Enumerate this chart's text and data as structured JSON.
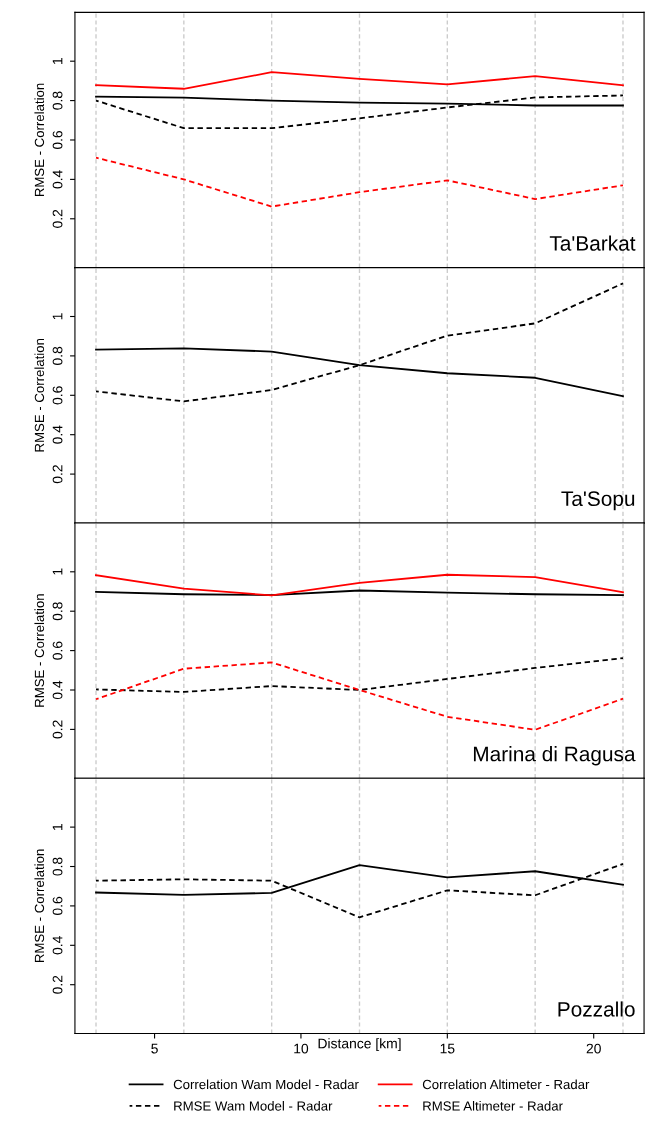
{
  "chart_data": [
    {
      "type": "line",
      "ylabel": "RMSE - Correlation",
      "annotations": [
        "Ta'Barkat"
      ],
      "x": [
        3,
        6,
        9,
        12,
        15,
        18,
        21
      ],
      "xlim": [
        2.28,
        21.72
      ],
      "ylim": [
        -0.048,
        1.248
      ],
      "yticks": [
        0.2,
        0.4,
        0.6,
        0.8,
        1
      ],
      "tick_labels": "y",
      "legend": "bottom",
      "ref_lines": [
        {
          "axis": "x",
          "value": 3,
          "color": "#cccccc",
          "line_style": "dashed"
        },
        {
          "axis": "x",
          "value": 6,
          "color": "#cccccc",
          "line_style": "dashed"
        },
        {
          "axis": "x",
          "value": 9,
          "color": "#cccccc",
          "line_style": "dashed"
        },
        {
          "axis": "x",
          "value": 12,
          "color": "#cccccc",
          "line_style": "dashed"
        },
        {
          "axis": "x",
          "value": 15,
          "color": "#cccccc",
          "line_style": "dashed"
        },
        {
          "axis": "x",
          "value": 18,
          "color": "#cccccc",
          "line_style": "dashed"
        },
        {
          "axis": "x",
          "value": 21,
          "color": "#cccccc",
          "line_style": "dashed"
        }
      ],
      "series": [
        {
          "name": "Correlation Wam Model - Radar",
          "color": "#000000",
          "line_style": "solid",
          "values": [
            0.82,
            0.815,
            0.8,
            0.79,
            0.785,
            0.775,
            0.775
          ]
        },
        {
          "name": "Correlation Altimeter - Radar",
          "color": "#ff0000",
          "line_style": "solid",
          "values": [
            0.878,
            0.86,
            0.944,
            0.91,
            0.882,
            0.924,
            0.878
          ]
        },
        {
          "name": "RMSE Wam Model - Radar",
          "color": "#000000",
          "line_style": "dashed",
          "values": [
            0.8,
            0.66,
            0.66,
            0.71,
            0.765,
            0.816,
            0.826
          ]
        },
        {
          "name": "RMSE Altimeter - Radar",
          "color": "#ff0000",
          "line_style": "dashed",
          "values": [
            0.51,
            0.4,
            0.262,
            0.335,
            0.395,
            0.3,
            0.37
          ]
        }
      ]
    },
    {
      "type": "line",
      "ylabel": "RMSE - Correlation",
      "annotations": [
        "Ta'Sopu"
      ],
      "x": [
        3,
        6,
        9,
        12,
        15,
        18,
        21
      ],
      "xlim": [
        2.28,
        21.72
      ],
      "ylim": [
        -0.048,
        1.248
      ],
      "yticks": [
        0.2,
        0.4,
        0.6,
        0.8,
        1
      ],
      "tick_labels": "y",
      "legend": false,
      "ref_lines": [
        {
          "axis": "x",
          "value": 3,
          "color": "#cccccc",
          "line_style": "dashed"
        },
        {
          "axis": "x",
          "value": 6,
          "color": "#cccccc",
          "line_style": "dashed"
        },
        {
          "axis": "x",
          "value": 9,
          "color": "#cccccc",
          "line_style": "dashed"
        },
        {
          "axis": "x",
          "value": 12,
          "color": "#cccccc",
          "line_style": "dashed"
        },
        {
          "axis": "x",
          "value": 15,
          "color": "#cccccc",
          "line_style": "dashed"
        },
        {
          "axis": "x",
          "value": 18,
          "color": "#cccccc",
          "line_style": "dashed"
        },
        {
          "axis": "x",
          "value": 21,
          "color": "#cccccc",
          "line_style": "dashed"
        }
      ],
      "series": [
        {
          "color": "#000000",
          "line_style": "solid",
          "values": [
            0.832,
            0.838,
            0.822,
            0.753,
            0.712,
            0.689,
            0.596
          ]
        },
        {
          "color": "#000000",
          "line_style": "dashed",
          "values": [
            0.62,
            0.569,
            0.627,
            0.753,
            0.903,
            0.965,
            1.168
          ]
        }
      ]
    },
    {
      "type": "line",
      "ylabel": "RMSE - Correlation",
      "annotations": [
        "Marina di Ragusa"
      ],
      "x": [
        3,
        6,
        9,
        12,
        15,
        18,
        21
      ],
      "xlim": [
        2.28,
        21.72
      ],
      "ylim": [
        -0.048,
        1.248
      ],
      "yticks": [
        0.2,
        0.4,
        0.6,
        0.8,
        1
      ],
      "tick_labels": "y",
      "legend": false,
      "ref_lines": [
        {
          "axis": "x",
          "value": 3,
          "color": "#cccccc",
          "line_style": "dashed"
        },
        {
          "axis": "x",
          "value": 6,
          "color": "#cccccc",
          "line_style": "dashed"
        },
        {
          "axis": "x",
          "value": 9,
          "color": "#cccccc",
          "line_style": "dashed"
        },
        {
          "axis": "x",
          "value": 12,
          "color": "#cccccc",
          "line_style": "dashed"
        },
        {
          "axis": "x",
          "value": 15,
          "color": "#cccccc",
          "line_style": "dashed"
        },
        {
          "axis": "x",
          "value": 18,
          "color": "#cccccc",
          "line_style": "dashed"
        },
        {
          "axis": "x",
          "value": 21,
          "color": "#cccccc",
          "line_style": "dashed"
        }
      ],
      "series": [
        {
          "color": "#000000",
          "line_style": "solid",
          "values": [
            0.898,
            0.886,
            0.882,
            0.905,
            0.894,
            0.886,
            0.882
          ]
        },
        {
          "color": "#ff0000",
          "line_style": "solid",
          "values": [
            0.983,
            0.915,
            0.88,
            0.944,
            0.985,
            0.973,
            0.896
          ]
        },
        {
          "color": "#000000",
          "line_style": "dashed",
          "values": [
            0.403,
            0.39,
            0.42,
            0.4,
            0.456,
            0.512,
            0.562
          ]
        },
        {
          "color": "#ff0000",
          "line_style": "dashed",
          "values": [
            0.353,
            0.508,
            0.54,
            0.4,
            0.264,
            0.198,
            0.356
          ]
        }
      ]
    },
    {
      "type": "line",
      "ylabel": "RMSE - Correlation",
      "xlabel": "Distance [km]",
      "annotations": [
        "Pozzallo"
      ],
      "x": [
        3,
        6,
        9,
        12,
        15,
        18,
        21
      ],
      "xlim": [
        2.28,
        21.72
      ],
      "xticks": [
        5,
        10,
        15,
        20
      ],
      "ylim": [
        -0.048,
        1.248
      ],
      "yticks": [
        0.2,
        0.4,
        0.6,
        0.8,
        1
      ],
      "ref_lines": [
        {
          "axis": "x",
          "value": 3,
          "color": "#cccccc",
          "line_style": "dashed"
        },
        {
          "axis": "x",
          "value": 6,
          "color": "#cccccc",
          "line_style": "dashed"
        },
        {
          "axis": "x",
          "value": 9,
          "color": "#cccccc",
          "line_style": "dashed"
        },
        {
          "axis": "x",
          "value": 12,
          "color": "#cccccc",
          "line_style": "dashed"
        },
        {
          "axis": "x",
          "value": 15,
          "color": "#cccccc",
          "line_style": "dashed"
        },
        {
          "axis": "x",
          "value": 18,
          "color": "#cccccc",
          "line_style": "dashed"
        },
        {
          "axis": "x",
          "value": 21,
          "color": "#cccccc",
          "line_style": "dashed"
        }
      ],
      "series": [
        {
          "color": "#000000",
          "line_style": "solid",
          "values": [
            0.668,
            0.656,
            0.666,
            0.807,
            0.745,
            0.776,
            0.708
          ]
        },
        {
          "color": "#000000",
          "line_style": "dashed",
          "values": [
            0.728,
            0.735,
            0.728,
            0.542,
            0.679,
            0.654,
            0.813
          ]
        }
      ]
    }
  ]
}
